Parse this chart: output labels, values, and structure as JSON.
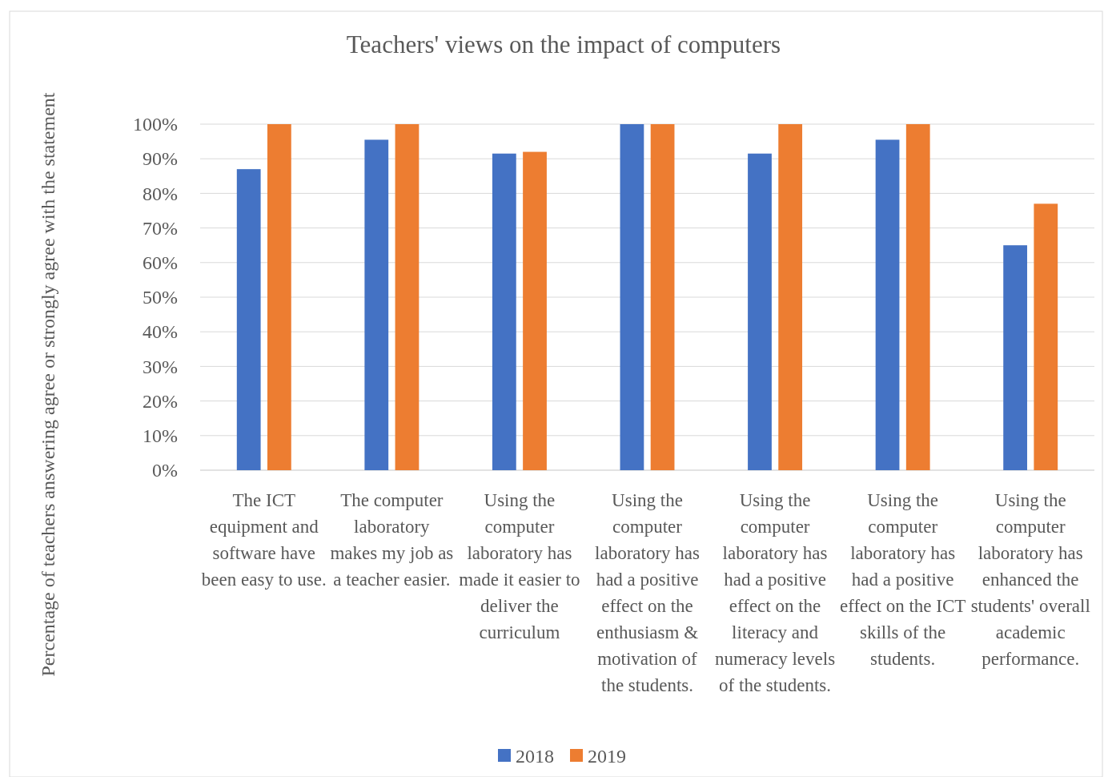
{
  "chart_data": {
    "type": "bar",
    "title": "Teachers' views on the impact of computers",
    "ylabel": "Percentage of teachers answering agree or strongly agree with the statement",
    "categories": [
      "The ICT equipment and software have been easy to use.",
      "The computer laboratory makes my job as a teacher easier.",
      "Using the computer laboratory has made it easier to deliver the curriculum",
      "Using the computer laboratory has had a positive effect on the enthusiasm & motivation of the students.",
      "Using the computer laboratory has had a positive effect on the literacy and numeracy levels of the students.",
      "Using the computer laboratory has had a positive effect on the ICT skills of the students.",
      "Using the computer laboratory has enhanced the students' overall academic performance."
    ],
    "series": [
      {
        "name": "2018",
        "color": "#4472c4",
        "values": [
          87,
          95.5,
          91.5,
          100,
          91.5,
          95.5,
          65
        ]
      },
      {
        "name": "2019",
        "color": "#ed7d31",
        "values": [
          100,
          100,
          92,
          100,
          100,
          100,
          77
        ]
      }
    ],
    "ylim": [
      0,
      100
    ],
    "yticks": [
      {
        "value": 0,
        "label": "0%"
      },
      {
        "value": 10,
        "label": "10%"
      },
      {
        "value": 20,
        "label": "20%"
      },
      {
        "value": 30,
        "label": "30%"
      },
      {
        "value": 40,
        "label": "40%"
      },
      {
        "value": 50,
        "label": "50%"
      },
      {
        "value": 60,
        "label": "60%"
      },
      {
        "value": 70,
        "label": "70%"
      },
      {
        "value": 80,
        "label": "80%"
      },
      {
        "value": 90,
        "label": "90%"
      },
      {
        "value": 100,
        "label": "100%"
      }
    ],
    "grid": "y",
    "legend": "bottom"
  }
}
